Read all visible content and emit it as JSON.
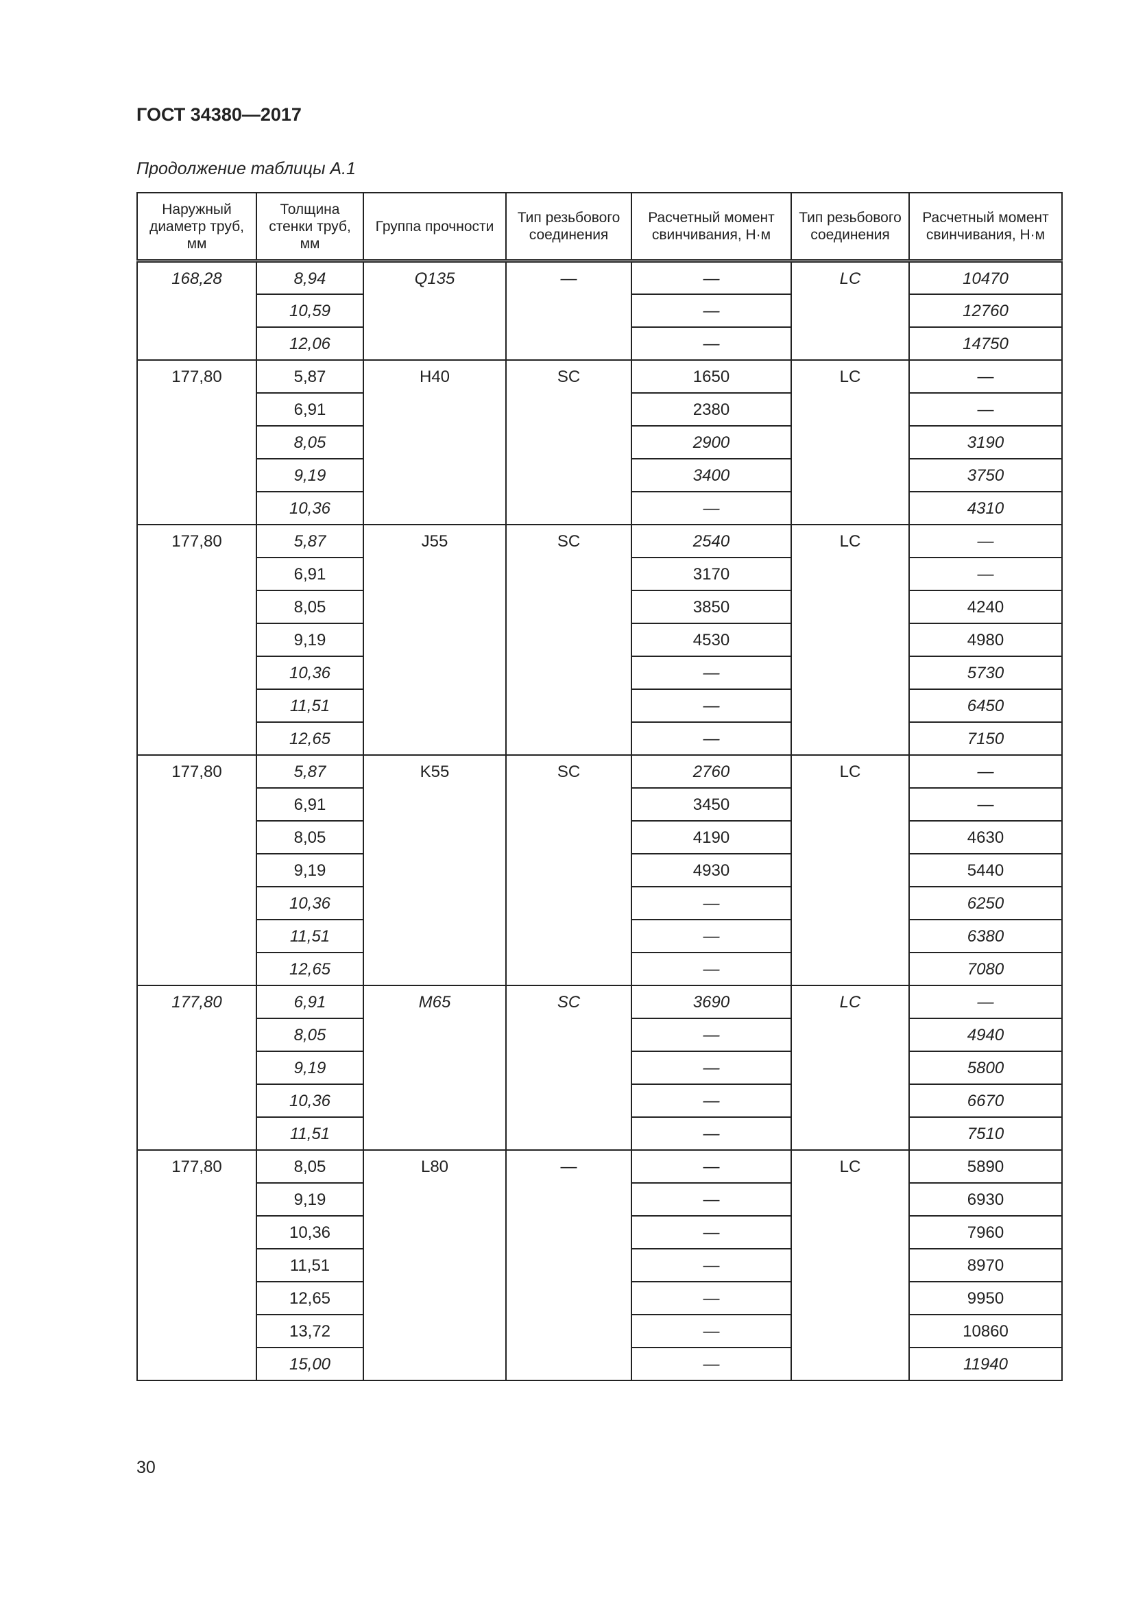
{
  "header": {
    "doc_title": "ГОСТ 34380—2017",
    "caption": "Продолжение таблицы А.1"
  },
  "table": {
    "columns": [
      "Наружный диаметр труб, мм",
      "Толщина стенки труб, мм",
      "Группа прочности",
      "Тип резьбового соединения",
      "Расчетный момент свинчивания, Н·м",
      "Тип резьбового соединения",
      "Расчетный момент свинчивания, Н·м"
    ],
    "groups": [
      {
        "diameter": "168,28",
        "grade": "Q135",
        "type1": "—",
        "type2": "LC",
        "italic": true,
        "rows": [
          {
            "t": "8,94",
            "m1": "—",
            "m2": "10470",
            "italic": true
          },
          {
            "t": "10,59",
            "m1": "—",
            "m2": "12760",
            "italic": true
          },
          {
            "t": "12,06",
            "m1": "—",
            "m2": "14750",
            "italic": true
          }
        ]
      },
      {
        "diameter": "177,80",
        "grade": "H40",
        "type1": "SC",
        "type2": "LC",
        "italic": false,
        "rows": [
          {
            "t": "5,87",
            "m1": "1650",
            "m2": "—",
            "italic": false
          },
          {
            "t": "6,91",
            "m1": "2380",
            "m2": "—",
            "italic": false
          },
          {
            "t": "8,05",
            "m1": "2900",
            "m2": "3190",
            "italic": true
          },
          {
            "t": "9,19",
            "m1": "3400",
            "m2": "3750",
            "italic": true
          },
          {
            "t": "10,36",
            "m1": "—",
            "m2": "4310",
            "italic": true
          }
        ]
      },
      {
        "diameter": "177,80",
        "grade": "J55",
        "type1": "SC",
        "type2": "LC",
        "italic": false,
        "rows": [
          {
            "t": "5,87",
            "m1": "2540",
            "m2": "—",
            "italic": true
          },
          {
            "t": "6,91",
            "m1": "3170",
            "m2": "—",
            "italic": false
          },
          {
            "t": "8,05",
            "m1": "3850",
            "m2": "4240",
            "italic": false
          },
          {
            "t": "9,19",
            "m1": "4530",
            "m2": "4980",
            "italic": false
          },
          {
            "t": "10,36",
            "m1": "—",
            "m2": "5730",
            "italic": true
          },
          {
            "t": "11,51",
            "m1": "—",
            "m2": "6450",
            "italic": true
          },
          {
            "t": "12,65",
            "m1": "—",
            "m2": "7150",
            "italic": true
          }
        ]
      },
      {
        "diameter": "177,80",
        "grade": "K55",
        "type1": "SC",
        "type2": "LC",
        "italic": false,
        "rows": [
          {
            "t": "5,87",
            "m1": "2760",
            "m2": "—",
            "italic": true
          },
          {
            "t": "6,91",
            "m1": "3450",
            "m2": "—",
            "italic": false
          },
          {
            "t": "8,05",
            "m1": "4190",
            "m2": "4630",
            "italic": false
          },
          {
            "t": "9,19",
            "m1": "4930",
            "m2": "5440",
            "italic": false
          },
          {
            "t": "10,36",
            "m1": "—",
            "m2": "6250",
            "italic": true
          },
          {
            "t": "11,51",
            "m1": "—",
            "m2": "6380",
            "italic": true
          },
          {
            "t": "12,65",
            "m1": "—",
            "m2": "7080",
            "italic": true
          }
        ]
      },
      {
        "diameter": "177,80",
        "grade": "M65",
        "type1": "SC",
        "type2": "LC",
        "italic": true,
        "rows": [
          {
            "t": "6,91",
            "m1": "3690",
            "m2": "—",
            "italic": true
          },
          {
            "t": "8,05",
            "m1": "—",
            "m2": "4940",
            "italic": true
          },
          {
            "t": "9,19",
            "m1": "—",
            "m2": "5800",
            "italic": true
          },
          {
            "t": "10,36",
            "m1": "—",
            "m2": "6670",
            "italic": true
          },
          {
            "t": "11,51",
            "m1": "—",
            "m2": "7510",
            "italic": true
          }
        ]
      },
      {
        "diameter": "177,80",
        "grade": "L80",
        "type1": "—",
        "type2": "LC",
        "italic": false,
        "rows": [
          {
            "t": "8,05",
            "m1": "—",
            "m2": "5890",
            "italic": false
          },
          {
            "t": "9,19",
            "m1": "—",
            "m2": "6930",
            "italic": false
          },
          {
            "t": "10,36",
            "m1": "—",
            "m2": "7960",
            "italic": false
          },
          {
            "t": "11,51",
            "m1": "—",
            "m2": "8970",
            "italic": false
          },
          {
            "t": "12,65",
            "m1": "—",
            "m2": "9950",
            "italic": false
          },
          {
            "t": "13,72",
            "m1": "—",
            "m2": "10860",
            "italic": false
          },
          {
            "t": "15,00",
            "m1": "—",
            "m2": "11940",
            "italic": true
          }
        ]
      }
    ]
  },
  "footer": {
    "page_number": "30"
  }
}
